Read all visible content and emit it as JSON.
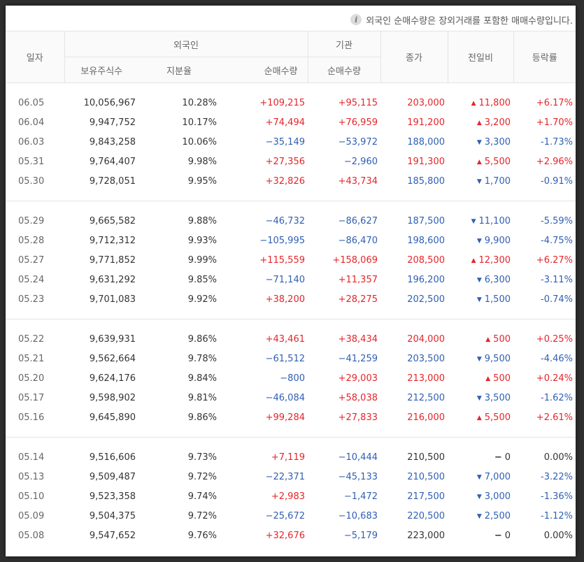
{
  "notice": "외국인 순매수량은 장외거래를 포함한 매매수량입니다.",
  "headers": {
    "date": "일자",
    "foreign": "외국인",
    "institution": "기관",
    "close": "종가",
    "change": "전일비",
    "rate": "등락률",
    "holdings": "보유주식수",
    "ratio": "지분율",
    "foreign_net": "순매수량",
    "inst_net": "순매수량"
  },
  "groups": [
    [
      {
        "date": "06.05",
        "holdings": "10,056,967",
        "ratio": "10.28%",
        "foreign_net": "+109,215",
        "inst_net": "+95,115",
        "close": "203,000",
        "change": "11,800",
        "rate": "+6.17%",
        "dir": "up",
        "fdir": "up",
        "idir": "up",
        "cdir": "up"
      },
      {
        "date": "06.04",
        "holdings": "9,947,752",
        "ratio": "10.17%",
        "foreign_net": "+74,494",
        "inst_net": "+76,959",
        "close": "191,200",
        "change": "3,200",
        "rate": "+1.70%",
        "dir": "up",
        "fdir": "up",
        "idir": "up",
        "cdir": "up"
      },
      {
        "date": "06.03",
        "holdings": "9,843,258",
        "ratio": "10.06%",
        "foreign_net": "−35,149",
        "inst_net": "−53,972",
        "close": "188,000",
        "change": "3,300",
        "rate": "-1.73%",
        "dir": "down",
        "fdir": "down",
        "idir": "down",
        "cdir": "down"
      },
      {
        "date": "05.31",
        "holdings": "9,764,407",
        "ratio": "9.98%",
        "foreign_net": "+27,356",
        "inst_net": "−2,960",
        "close": "191,300",
        "change": "5,500",
        "rate": "+2.96%",
        "dir": "up",
        "fdir": "up",
        "idir": "down",
        "cdir": "up"
      },
      {
        "date": "05.30",
        "holdings": "9,728,051",
        "ratio": "9.95%",
        "foreign_net": "+32,826",
        "inst_net": "+43,734",
        "close": "185,800",
        "change": "1,700",
        "rate": "-0.91%",
        "dir": "down",
        "fdir": "up",
        "idir": "up",
        "cdir": "down"
      }
    ],
    [
      {
        "date": "05.29",
        "holdings": "9,665,582",
        "ratio": "9.88%",
        "foreign_net": "−46,732",
        "inst_net": "−86,627",
        "close": "187,500",
        "change": "11,100",
        "rate": "-5.59%",
        "dir": "down",
        "fdir": "down",
        "idir": "down",
        "cdir": "down"
      },
      {
        "date": "05.28",
        "holdings": "9,712,312",
        "ratio": "9.93%",
        "foreign_net": "−105,995",
        "inst_net": "−86,470",
        "close": "198,600",
        "change": "9,900",
        "rate": "-4.75%",
        "dir": "down",
        "fdir": "down",
        "idir": "down",
        "cdir": "down"
      },
      {
        "date": "05.27",
        "holdings": "9,771,852",
        "ratio": "9.99%",
        "foreign_net": "+115,559",
        "inst_net": "+158,069",
        "close": "208,500",
        "change": "12,300",
        "rate": "+6.27%",
        "dir": "up",
        "fdir": "up",
        "idir": "up",
        "cdir": "up"
      },
      {
        "date": "05.24",
        "holdings": "9,631,292",
        "ratio": "9.85%",
        "foreign_net": "−71,140",
        "inst_net": "+11,357",
        "close": "196,200",
        "change": "6,300",
        "rate": "-3.11%",
        "dir": "down",
        "fdir": "down",
        "idir": "up",
        "cdir": "down"
      },
      {
        "date": "05.23",
        "holdings": "9,701,083",
        "ratio": "9.92%",
        "foreign_net": "+38,200",
        "inst_net": "+28,275",
        "close": "202,500",
        "change": "1,500",
        "rate": "-0.74%",
        "dir": "down",
        "fdir": "up",
        "idir": "up",
        "cdir": "down"
      }
    ],
    [
      {
        "date": "05.22",
        "holdings": "9,639,931",
        "ratio": "9.86%",
        "foreign_net": "+43,461",
        "inst_net": "+38,434",
        "close": "204,000",
        "change": "500",
        "rate": "+0.25%",
        "dir": "up",
        "fdir": "up",
        "idir": "up",
        "cdir": "up"
      },
      {
        "date": "05.21",
        "holdings": "9,562,664",
        "ratio": "9.78%",
        "foreign_net": "−61,512",
        "inst_net": "−41,259",
        "close": "203,500",
        "change": "9,500",
        "rate": "-4.46%",
        "dir": "down",
        "fdir": "down",
        "idir": "down",
        "cdir": "down"
      },
      {
        "date": "05.20",
        "holdings": "9,624,176",
        "ratio": "9.84%",
        "foreign_net": "−800",
        "inst_net": "+29,003",
        "close": "213,000",
        "change": "500",
        "rate": "+0.24%",
        "dir": "up",
        "fdir": "down",
        "idir": "up",
        "cdir": "up"
      },
      {
        "date": "05.17",
        "holdings": "9,598,902",
        "ratio": "9.81%",
        "foreign_net": "−46,084",
        "inst_net": "+58,038",
        "close": "212,500",
        "change": "3,500",
        "rate": "-1.62%",
        "dir": "down",
        "fdir": "down",
        "idir": "up",
        "cdir": "down"
      },
      {
        "date": "05.16",
        "holdings": "9,645,890",
        "ratio": "9.86%",
        "foreign_net": "+99,284",
        "inst_net": "+27,833",
        "close": "216,000",
        "change": "5,500",
        "rate": "+2.61%",
        "dir": "up",
        "fdir": "up",
        "idir": "up",
        "cdir": "up"
      }
    ],
    [
      {
        "date": "05.14",
        "holdings": "9,516,606",
        "ratio": "9.73%",
        "foreign_net": "+7,119",
        "inst_net": "−10,444",
        "close": "210,500",
        "change": "0",
        "rate": "0.00%",
        "dir": "flat",
        "fdir": "up",
        "idir": "down",
        "cdir": "flat"
      },
      {
        "date": "05.13",
        "holdings": "9,509,487",
        "ratio": "9.72%",
        "foreign_net": "−22,371",
        "inst_net": "−45,133",
        "close": "210,500",
        "change": "7,000",
        "rate": "-3.22%",
        "dir": "down",
        "fdir": "down",
        "idir": "down",
        "cdir": "down"
      },
      {
        "date": "05.10",
        "holdings": "9,523,358",
        "ratio": "9.74%",
        "foreign_net": "+2,983",
        "inst_net": "−1,472",
        "close": "217,500",
        "change": "3,000",
        "rate": "-1.36%",
        "dir": "down",
        "fdir": "up",
        "idir": "down",
        "cdir": "down"
      },
      {
        "date": "05.09",
        "holdings": "9,504,375",
        "ratio": "9.72%",
        "foreign_net": "−25,672",
        "inst_net": "−10,683",
        "close": "220,500",
        "change": "2,500",
        "rate": "-1.12%",
        "dir": "down",
        "fdir": "down",
        "idir": "down",
        "cdir": "down"
      },
      {
        "date": "05.08",
        "holdings": "9,547,652",
        "ratio": "9.76%",
        "foreign_net": "+32,676",
        "inst_net": "−5,179",
        "close": "223,000",
        "change": "0",
        "rate": "0.00%",
        "dir": "flat",
        "fdir": "up",
        "idir": "down",
        "cdir": "flat"
      }
    ]
  ],
  "icons": {
    "info": "info-icon",
    "up": "triangle-up-icon",
    "down": "triangle-down-icon",
    "flat": "dash-icon"
  },
  "colors": {
    "up": "#e5252a",
    "down": "#2f5fb3",
    "flat": "#333333"
  }
}
